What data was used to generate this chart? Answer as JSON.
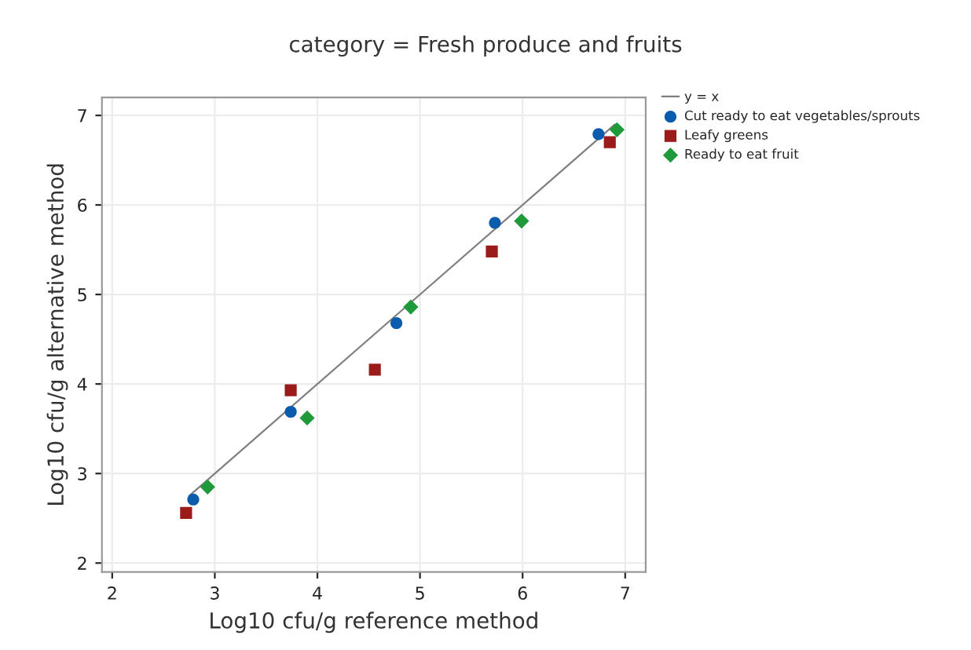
{
  "chart_data": {
    "type": "scatter",
    "title": "category = Fresh produce and fruits",
    "xlabel": "Log10 cfu/g reference method",
    "ylabel": "Log10 cfu/g alternative method",
    "xlim": [
      1.9,
      7.2
    ],
    "ylim": [
      1.9,
      7.2
    ],
    "xticks": [
      2,
      3,
      4,
      5,
      6,
      7
    ],
    "yticks": [
      2,
      3,
      4,
      5,
      6,
      7
    ],
    "grid": true,
    "legend": "top right",
    "series": [
      {
        "name": "y = x",
        "type": "line",
        "color": "#7f7f7f",
        "x": [
          2.75,
          6.9
        ],
        "values": [
          2.75,
          6.9
        ],
        "marker": "none",
        "line_style": "solid"
      },
      {
        "name": "Cut ready to eat vegetables/sprouts",
        "color": "#0b5cad",
        "marker": "circle",
        "x": [
          2.79,
          3.74,
          4.77,
          5.73,
          6.74
        ],
        "values": [
          2.71,
          3.69,
          4.68,
          5.8,
          6.79
        ]
      },
      {
        "name": "Leafy greens",
        "color": "#9b1b1b",
        "marker": "square",
        "x": [
          2.72,
          3.74,
          4.56,
          5.7,
          6.85
        ],
        "values": [
          2.56,
          3.93,
          4.16,
          5.48,
          6.7
        ]
      },
      {
        "name": "Ready to eat fruit",
        "color": "#1e9a3a",
        "marker": "diamond",
        "x": [
          2.93,
          3.9,
          4.91,
          5.99,
          6.92
        ],
        "values": [
          2.85,
          3.62,
          4.86,
          5.82,
          6.84
        ]
      }
    ]
  }
}
